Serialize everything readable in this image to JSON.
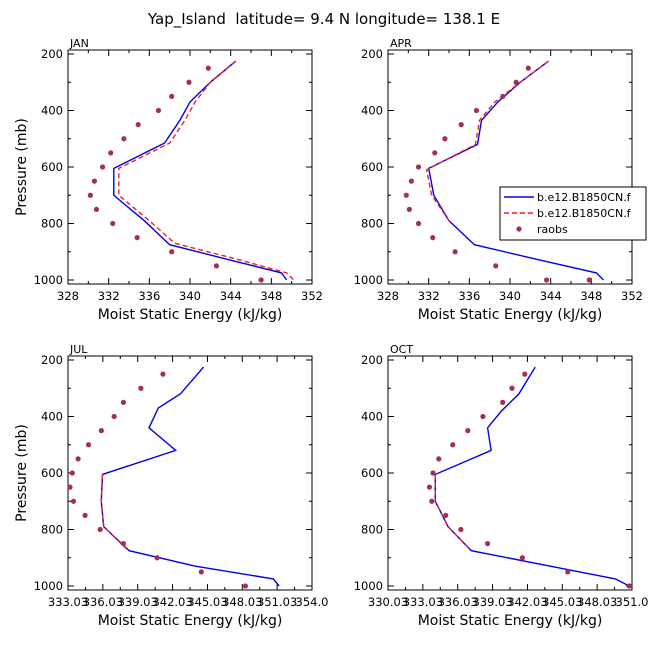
{
  "title": "Yap_Island  latitude= 9.4 N longitude= 138.1 E",
  "colors": {
    "model1": "#0000ee",
    "model2": "#ee2222",
    "raobs": "#a0305a"
  },
  "legend": {
    "entries": [
      {
        "label": "b.e12.B1850CN.f",
        "style": "solid",
        "color": "#0000ee"
      },
      {
        "label": "b.e12.B1850CN.f",
        "style": "dashed",
        "color": "#ee2222"
      },
      {
        "label": "raobs",
        "style": "dot",
        "color": "#a0305a"
      }
    ],
    "placement": "right of APR panel"
  },
  "chart_data": [
    {
      "type": "line",
      "panel": "JAN",
      "xlabel": "Moist Static Energy (kJ/kg)",
      "ylabel": "Pressure (mb)",
      "xlim": [
        328,
        352
      ],
      "ylim": [
        1000,
        200
      ],
      "xticks": [
        "328",
        "332",
        "336",
        "340",
        "344",
        "348",
        "352"
      ],
      "xtick_values": [
        328,
        332,
        336,
        340,
        344,
        348,
        352
      ],
      "yticks": [
        "200",
        "400",
        "600",
        "800",
        "1000"
      ],
      "ytick_values": [
        200,
        400,
        600,
        800,
        1000
      ],
      "series": [
        {
          "key": "model1",
          "style": "solid",
          "points": [
            [
              344.5,
              225
            ],
            [
              342,
              300
            ],
            [
              340,
              370
            ],
            [
              339,
              435
            ],
            [
              337.5,
              515
            ],
            [
              332.5,
              605
            ],
            [
              332.5,
              700
            ],
            [
              335.5,
              790
            ],
            [
              338,
              875
            ],
            [
              344,
              930
            ],
            [
              349,
              975
            ],
            [
              349.5,
              1000
            ]
          ]
        },
        {
          "key": "model2",
          "style": "dashed",
          "points": [
            [
              344.5,
              225
            ],
            [
              342,
              300
            ],
            [
              340.5,
              370
            ],
            [
              339.5,
              435
            ],
            [
              338,
              515
            ],
            [
              333,
              605
            ],
            [
              333,
              700
            ],
            [
              336,
              790
            ],
            [
              338.5,
              870
            ],
            [
              345,
              930
            ],
            [
              349.5,
              975
            ],
            [
              350.2,
              1000
            ]
          ]
        },
        {
          "key": "raobs",
          "style": "dot",
          "points": [
            [
              341.8,
              250
            ],
            [
              339.9,
              300
            ],
            [
              338.2,
              350
            ],
            [
              336.9,
              400
            ],
            [
              334.9,
              450
            ],
            [
              333.5,
              500
            ],
            [
              332.2,
              550
            ],
            [
              331.4,
              600
            ],
            [
              330.6,
              650
            ],
            [
              330.2,
              700
            ],
            [
              330.8,
              750
            ],
            [
              332.4,
              800
            ],
            [
              334.8,
              850
            ],
            [
              338.2,
              900
            ],
            [
              342.6,
              950
            ],
            [
              347,
              1000
            ]
          ]
        }
      ]
    },
    {
      "type": "line",
      "panel": "APR",
      "xlabel": "Moist Static Energy (kJ/kg)",
      "ylabel": "",
      "xlim": [
        328,
        352
      ],
      "ylim": [
        1000,
        200
      ],
      "xticks": [
        "328",
        "332",
        "336",
        "340",
        "344",
        "348",
        "352"
      ],
      "xtick_values": [
        328,
        332,
        336,
        340,
        344,
        348,
        352
      ],
      "yticks": [
        "200",
        "400",
        "600",
        "800",
        "1000"
      ],
      "ytick_values": [
        200,
        400,
        600,
        800,
        1000
      ],
      "series": [
        {
          "key": "model1",
          "style": "solid",
          "points": [
            [
              343.8,
              225
            ],
            [
              341,
              300
            ],
            [
              338.8,
              370
            ],
            [
              337.2,
              435
            ],
            [
              336.8,
              520
            ],
            [
              332,
              605
            ],
            [
              332.5,
              700
            ],
            [
              334,
              790
            ],
            [
              336.5,
              875
            ],
            [
              343,
              930
            ],
            [
              348.5,
              975
            ],
            [
              349.2,
              1000
            ]
          ]
        },
        {
          "key": "model2",
          "style": "dashed",
          "points": [
            [
              343.8,
              225
            ],
            [
              341,
              300
            ],
            [
              338.5,
              370
            ],
            [
              337,
              435
            ],
            [
              336.6,
              520
            ],
            [
              331.8,
              610
            ],
            [
              332.3,
              700
            ],
            [
              334,
              790
            ]
          ]
        },
        {
          "key": "raobs",
          "style": "dot",
          "points": [
            [
              341.8,
              250
            ],
            [
              340.6,
              300
            ],
            [
              339.3,
              350
            ],
            [
              336.7,
              400
            ],
            [
              335.2,
              450
            ],
            [
              333.6,
              500
            ],
            [
              332.6,
              550
            ],
            [
              331,
              600
            ],
            [
              330.3,
              650
            ],
            [
              329.8,
              700
            ],
            [
              330.1,
              750
            ],
            [
              331,
              800
            ],
            [
              332.4,
              850
            ],
            [
              334.6,
              900
            ],
            [
              338.6,
              950
            ],
            [
              343.6,
              1000
            ],
            [
              347.8,
              1000
            ]
          ]
        }
      ]
    },
    {
      "type": "line",
      "panel": "JUL",
      "xlabel": "Moist Static Energy (kJ/kg)",
      "ylabel": "Pressure (mb)",
      "xlim": [
        333.03,
        354.03
      ],
      "ylim": [
        1000,
        200
      ],
      "xticks": [
        "333.03",
        "336.03",
        "339.03",
        "342.03",
        "345.03",
        "348.03",
        "351.03",
        "354.0"
      ],
      "xtick_values": [
        333.03,
        336.03,
        339.03,
        342.03,
        345.03,
        348.03,
        351.03,
        354.03
      ],
      "yticks": [
        "200",
        "400",
        "600",
        "800",
        "1000"
      ],
      "ytick_values": [
        200,
        400,
        600,
        800,
        1000
      ],
      "series": [
        {
          "key": "model1",
          "style": "solid",
          "points": [
            [
              344.7,
              225
            ],
            [
              342.7,
              320
            ],
            [
              340.8,
              370
            ],
            [
              340,
              440
            ],
            [
              342.3,
              520
            ],
            [
              336,
              605
            ],
            [
              335.9,
              700
            ],
            [
              336.1,
              790
            ],
            [
              338.3,
              875
            ],
            [
              344,
              930
            ],
            [
              350.7,
              975
            ],
            [
              351.2,
              1000
            ]
          ]
        },
        {
          "key": "model2",
          "style": "dashed",
          "points": [
            [
              336,
              605
            ],
            [
              335.9,
              700
            ],
            [
              336.1,
              790
            ],
            [
              338.1,
              870
            ]
          ]
        },
        {
          "key": "raobs",
          "style": "dot",
          "points": [
            [
              341.2,
              250
            ],
            [
              339.3,
              300
            ],
            [
              337.8,
              350
            ],
            [
              337,
              400
            ],
            [
              335.9,
              450
            ],
            [
              334.8,
              500
            ],
            [
              333.9,
              550
            ],
            [
              333.4,
              600
            ],
            [
              333.2,
              650
            ],
            [
              333.5,
              700
            ],
            [
              334.5,
              750
            ],
            [
              335.8,
              800
            ],
            [
              337.8,
              850
            ],
            [
              340.7,
              900
            ],
            [
              344.5,
              950
            ],
            [
              348.3,
              1000
            ]
          ]
        }
      ]
    },
    {
      "type": "line",
      "panel": "OCT",
      "xlabel": "Moist Static Energy (kJ/kg)",
      "ylabel": "",
      "xlim": [
        330.03,
        351.03
      ],
      "ylim": [
        1000,
        200
      ],
      "xticks": [
        "330.03",
        "333.03",
        "336.03",
        "339.03",
        "342.03",
        "345.03",
        "348.03",
        "351.0"
      ],
      "xtick_values": [
        330.03,
        333.03,
        336.03,
        339.03,
        342.03,
        345.03,
        348.03,
        351.03
      ],
      "yticks": [
        "200",
        "400",
        "600",
        "800",
        "1000"
      ],
      "ytick_values": [
        200,
        400,
        600,
        800,
        1000
      ],
      "series": [
        {
          "key": "model1",
          "style": "solid",
          "points": [
            [
              342.7,
              225
            ],
            [
              341.3,
              320
            ],
            [
              339.8,
              380
            ],
            [
              338.6,
              440
            ],
            [
              338.9,
              520
            ],
            [
              334.1,
              605
            ],
            [
              334.1,
              700
            ],
            [
              335.2,
              790
            ],
            [
              337.2,
              875
            ],
            [
              344,
              930
            ],
            [
              349.6,
              975
            ],
            [
              350.8,
              1000
            ]
          ]
        },
        {
          "key": "model2",
          "style": "dashed",
          "points": [
            [
              334.1,
              605
            ],
            [
              334.1,
              700
            ],
            [
              335.2,
              790
            ],
            [
              337.1,
              870
            ]
          ]
        },
        {
          "key": "raobs",
          "style": "dot",
          "points": [
            [
              341.8,
              250
            ],
            [
              340.7,
              300
            ],
            [
              339.9,
              350
            ],
            [
              338.2,
              400
            ],
            [
              336.9,
              450
            ],
            [
              335.6,
              500
            ],
            [
              334.4,
              550
            ],
            [
              333.9,
              600
            ],
            [
              333.6,
              650
            ],
            [
              333.8,
              700
            ],
            [
              335,
              750
            ],
            [
              336.3,
              800
            ],
            [
              338.6,
              850
            ],
            [
              341.6,
              900
            ],
            [
              345.5,
              950
            ],
            [
              350.8,
              1000
            ]
          ]
        }
      ]
    }
  ]
}
